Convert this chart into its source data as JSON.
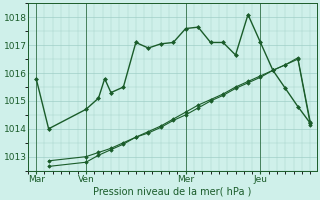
{
  "title": "Pression niveau de la mer( hPa )",
  "bg_color": "#cff0ea",
  "grid_color": "#a0cfc8",
  "line_color": "#1a5c2a",
  "ylim": [
    1012.5,
    1018.5
  ],
  "yticks": [
    1013,
    1014,
    1015,
    1016,
    1017,
    1018
  ],
  "day_labels": [
    "Mar",
    "Ven",
    "Mer",
    "Jeu"
  ],
  "day_positions": [
    0,
    24,
    72,
    108
  ],
  "xlim": [
    -4,
    135
  ],
  "series": [
    {
      "x": [
        0,
        6,
        24,
        30,
        33,
        36,
        42,
        48,
        54,
        60,
        66,
        72,
        78,
        84,
        90,
        96,
        102,
        108,
        114,
        120,
        126,
        132
      ],
      "y": [
        1015.8,
        1014.0,
        1014.7,
        1015.1,
        1015.8,
        1015.3,
        1015.5,
        1017.1,
        1016.9,
        1017.05,
        1017.1,
        1017.6,
        1017.65,
        1017.1,
        1017.1,
        1016.65,
        1018.1,
        1017.1,
        1016.1,
        1015.45,
        1014.8,
        1014.2
      ],
      "marker": "D",
      "markersize": 2.0,
      "linewidth": 1.0
    },
    {
      "x": [
        6,
        24,
        30,
        36,
        42,
        48,
        54,
        60,
        66,
        72,
        78,
        84,
        90,
        96,
        102,
        108,
        114,
        120,
        126,
        132
      ],
      "y": [
        1012.85,
        1013.0,
        1013.15,
        1013.3,
        1013.5,
        1013.7,
        1013.9,
        1014.1,
        1014.35,
        1014.6,
        1014.85,
        1015.05,
        1015.25,
        1015.5,
        1015.7,
        1015.9,
        1016.1,
        1016.3,
        1016.5,
        1014.15
      ],
      "marker": "D",
      "markersize": 1.8,
      "linewidth": 0.8
    },
    {
      "x": [
        6,
        24,
        30,
        36,
        42,
        48,
        54,
        60,
        66,
        72,
        78,
        84,
        90,
        96,
        102,
        108,
        114,
        120,
        126,
        132
      ],
      "y": [
        1012.65,
        1012.8,
        1013.05,
        1013.25,
        1013.45,
        1013.7,
        1013.85,
        1014.05,
        1014.3,
        1014.5,
        1014.75,
        1015.0,
        1015.2,
        1015.45,
        1015.65,
        1015.85,
        1016.1,
        1016.3,
        1016.55,
        1014.25
      ],
      "marker": "D",
      "markersize": 1.8,
      "linewidth": 0.8
    }
  ],
  "xlabel_fontsize": 7.0,
  "xtick_fontsize": 6.5,
  "ytick_fontsize": 6.5
}
